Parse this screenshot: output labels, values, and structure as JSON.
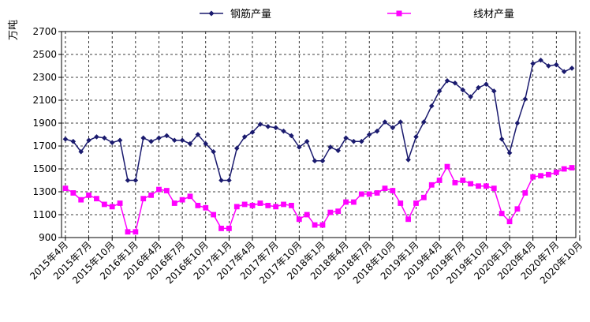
{
  "chart_data": {
    "type": "line",
    "title": "",
    "xlabel": "",
    "ylabel": "万吨",
    "ylim": [
      900,
      2700
    ],
    "yticks": [
      900,
      1100,
      1300,
      1500,
      1700,
      1900,
      2100,
      2300,
      2500,
      2700
    ],
    "grid": "dashed",
    "legend": "top-center",
    "xtick_labels": [
      "2015年4月",
      "2015年7月",
      "2015年10月",
      "2016年1月",
      "2016年4月",
      "2016年7月",
      "2016年10月",
      "2017年1月",
      "2017年4月",
      "2017年7月",
      "2017年10月",
      "2018年1月",
      "2018年4月",
      "2018年7月",
      "2018年10月",
      "2019年1月",
      "2019年4月",
      "2019年7月",
      "2019年10月",
      "2020年1月",
      "2020年4月",
      "2020年7月",
      "2020年10月"
    ],
    "series": [
      {
        "name": "钢筋产量",
        "color": "#1a1a6e",
        "marker": "diamond",
        "values": [
          1760,
          1740,
          1650,
          1750,
          1780,
          1770,
          1730,
          1750,
          1400,
          1400,
          1770,
          1740,
          1770,
          1790,
          1750,
          1750,
          1720,
          1800,
          1720,
          1650,
          1400,
          1400,
          1680,
          1780,
          1820,
          1890,
          1870,
          1860,
          1830,
          1790,
          1690,
          1740,
          1570,
          1570,
          1690,
          1660,
          1770,
          1740,
          1740,
          1800,
          1830,
          1910,
          1860,
          1910,
          1580,
          1780,
          1910,
          2050,
          2180,
          2270,
          2250,
          2190,
          2130,
          2210,
          2240,
          2180,
          1760,
          1640,
          1900,
          2110,
          2420,
          2450,
          2400,
          2410,
          2350,
          2380
        ]
      },
      {
        "name": "线材产量",
        "color": "#ff00ff",
        "marker": "square",
        "values": [
          1330,
          1290,
          1230,
          1270,
          1240,
          1190,
          1170,
          1200,
          950,
          950,
          1240,
          1270,
          1320,
          1310,
          1200,
          1230,
          1260,
          1180,
          1160,
          1100,
          980,
          980,
          1170,
          1190,
          1180,
          1200,
          1180,
          1170,
          1190,
          1180,
          1060,
          1100,
          1010,
          1010,
          1120,
          1130,
          1210,
          1210,
          1280,
          1280,
          1290,
          1330,
          1310,
          1200,
          1060,
          1200,
          1250,
          1360,
          1400,
          1520,
          1380,
          1400,
          1370,
          1350,
          1350,
          1330,
          1110,
          1040,
          1150,
          1290,
          1430,
          1440,
          1450,
          1470,
          1500,
          1510
        ]
      }
    ]
  }
}
